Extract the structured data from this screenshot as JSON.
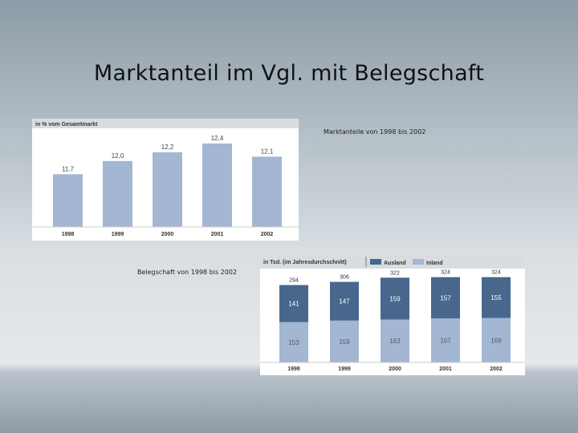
{
  "slide": {
    "title": "Marktanteil im Vgl. mit Belegschaft",
    "caption_market": "Marktanteile von 1998 bis 2002",
    "caption_staff": "Belegschaft von 1998 bis 2002"
  },
  "colors": {
    "bar_light": "#a3b6d2",
    "bar_dark": "#47688c",
    "header_bg": "#dadde0"
  },
  "chart_data": [
    {
      "type": "bar",
      "title": "in % vom Gesamtmarkt",
      "categories": [
        "1998",
        "1999",
        "2000",
        "2001",
        "2002"
      ],
      "values": [
        11.7,
        12.0,
        12.2,
        12.4,
        12.1
      ],
      "value_labels": [
        "11,7",
        "12,0",
        "12,2",
        "12,4",
        "12,1"
      ],
      "ylim": [
        10.5,
        12.6
      ]
    },
    {
      "type": "bar",
      "stacked": true,
      "title": "in Tsd. (im Jahresdurchschnitt)",
      "categories": [
        "1998",
        "1999",
        "2000",
        "2001",
        "2002"
      ],
      "series": [
        {
          "name": "Inland",
          "values": [
            153,
            159,
            163,
            167,
            169
          ]
        },
        {
          "name": "Ausland",
          "values": [
            141,
            147,
            159,
            157,
            155
          ]
        }
      ],
      "totals": [
        294,
        306,
        322,
        324,
        324
      ],
      "legend": [
        "Ausland",
        "Inland"
      ],
      "ylim": [
        0,
        335
      ]
    }
  ]
}
